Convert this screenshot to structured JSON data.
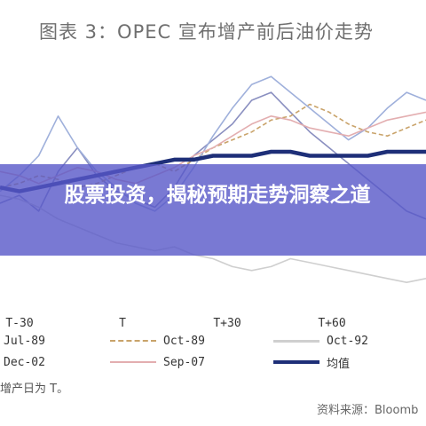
{
  "banner": {
    "text": "股票投资，揭秘预期走势洞察之道"
  },
  "note": "增产日为 T。",
  "source": "资料来源：Bloomb",
  "chart_data": {
    "type": "line",
    "title": "图表 3：OPEC 宣布增产前后油价走势",
    "x_tick_labels": [
      "T-30",
      "T",
      "T+30",
      "T+60"
    ],
    "x": [
      -35,
      -30,
      -25,
      -20,
      -15,
      -10,
      -5,
      0,
      5,
      10,
      15,
      20,
      25,
      30,
      35,
      40,
      45,
      50,
      55,
      60,
      65,
      70,
      75
    ],
    "ylim": [
      70,
      135
    ],
    "grid": false,
    "legend_position": "bottom",
    "series": [
      {
        "name": "Jul-89",
        "color": "#8a8fc0",
        "dash": "none",
        "values": [
          96,
          98,
          94,
          104,
          110,
          103,
          99,
          97,
          95,
          100,
          108,
          112,
          116,
          122,
          124,
          119,
          114,
          110,
          106,
          102,
          98,
          94,
          92
        ]
      },
      {
        "name": "Oct-89",
        "color": "#c9a36a",
        "dash": "5,3",
        "values": [
          100,
          101,
          103,
          102,
          100,
          101,
          103,
          105,
          106,
          104,
          107,
          110,
          112,
          114,
          117,
          118,
          121,
          119,
          116,
          114,
          113,
          115,
          117
        ]
      },
      {
        "name": "Oct-92",
        "color": "#cfcfcf",
        "dash": "none",
        "values": [
          98,
          97,
          95,
          92,
          90,
          88,
          86,
          85,
          84,
          85,
          83,
          82,
          80,
          79,
          80,
          82,
          81,
          80,
          79,
          78,
          77,
          76,
          77
        ]
      },
      {
        "name": "Dec-02",
        "color": "#9fb0db",
        "dash": "none",
        "values": [
          99,
          103,
          108,
          118,
          110,
          104,
          100,
          96,
          94,
          98,
          105,
          113,
          120,
          126,
          128,
          124,
          120,
          116,
          112,
          115,
          120,
          124,
          122
        ]
      },
      {
        "name": "Sep-07",
        "color": "#e3aeb0",
        "dash": "none",
        "values": [
          104,
          103,
          101,
          103,
          105,
          104,
          102,
          101,
          103,
          105,
          108,
          110,
          113,
          116,
          118,
          117,
          115,
          114,
          113,
          115,
          117,
          118,
          119
        ]
      },
      {
        "name": "均值",
        "color": "#1e2f78",
        "dash": "none",
        "bold": true,
        "values": [
          100,
          99,
          100,
          101,
          102,
          103,
          104,
          105,
          106,
          107,
          107,
          108,
          108,
          108,
          109,
          109,
          108,
          108,
          108,
          108,
          109,
          109,
          109
        ]
      }
    ]
  }
}
